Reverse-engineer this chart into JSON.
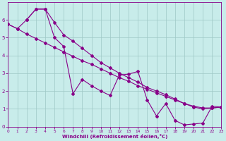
{
  "xlabel": "Windchill (Refroidissement éolien,°C)",
  "xlim": [
    0,
    23
  ],
  "ylim": [
    0,
    7
  ],
  "xticks": [
    0,
    1,
    2,
    3,
    4,
    5,
    6,
    7,
    8,
    9,
    10,
    11,
    12,
    13,
    14,
    15,
    16,
    17,
    18,
    19,
    20,
    21,
    22,
    23
  ],
  "yticks": [
    0,
    1,
    2,
    3,
    4,
    5,
    6
  ],
  "bg_color": "#c8ecea",
  "line_color": "#880088",
  "series": [
    {
      "x": [
        0,
        1,
        2,
        3,
        4,
        5,
        6,
        7,
        8,
        9,
        10,
        11,
        12,
        13,
        14,
        15,
        16,
        17,
        18,
        19,
        20,
        21,
        22,
        23
      ],
      "y": [
        5.75,
        5.5,
        5.2,
        4.95,
        4.7,
        4.45,
        4.2,
        3.95,
        3.7,
        3.5,
        3.25,
        3.0,
        2.75,
        2.55,
        2.3,
        2.1,
        1.9,
        1.7,
        1.5,
        1.3,
        1.15,
        1.05,
        1.05,
        1.1
      ]
    },
    {
      "x": [
        0,
        1,
        2,
        3,
        4,
        5,
        6,
        7,
        8,
        9,
        10,
        11,
        12,
        13,
        14,
        15,
        16,
        17,
        18,
        19,
        20,
        21,
        22,
        23
      ],
      "y": [
        5.75,
        5.5,
        6.0,
        6.6,
        6.6,
        5.85,
        5.15,
        4.8,
        4.4,
        4.0,
        3.6,
        3.3,
        3.0,
        2.75,
        2.5,
        2.2,
        2.0,
        1.8,
        1.55,
        1.3,
        1.1,
        1.0,
        1.05,
        1.1
      ]
    },
    {
      "x": [
        2,
        3,
        4,
        5,
        6,
        7,
        8,
        9,
        10,
        11,
        12,
        13,
        14,
        15,
        16,
        17,
        18,
        19,
        20,
        21,
        22,
        23
      ],
      "y": [
        6.0,
        6.6,
        6.6,
        5.0,
        4.5,
        1.85,
        2.65,
        2.3,
        2.0,
        1.75,
        2.9,
        2.95,
        3.1,
        1.5,
        0.6,
        1.3,
        0.35,
        0.1,
        0.15,
        0.2,
        1.15,
        1.1
      ]
    }
  ]
}
